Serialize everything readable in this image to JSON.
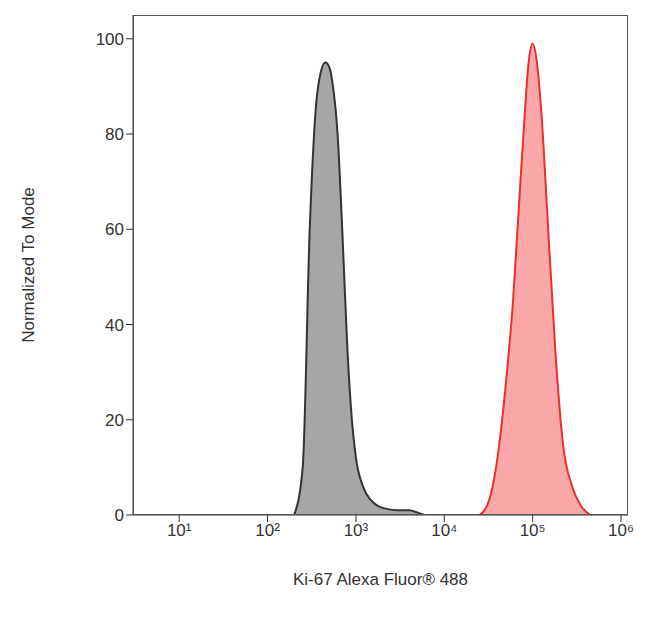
{
  "chart_data": {
    "type": "area",
    "log": "x",
    "xlabel": "Ki-67 Alexa Fluor® 488",
    "ylabel": "Normalized To Mode",
    "xlim": [
      3,
      1200000
    ],
    "xticks": [
      {
        "value": 10,
        "label": "10¹"
      },
      {
        "value": 100,
        "label": "10²"
      },
      {
        "value": 1000,
        "label": "10³"
      },
      {
        "value": 10000,
        "label": "10⁴"
      },
      {
        "value": 100000,
        "label": "10⁵"
      },
      {
        "value": 1000000,
        "label": "10⁶"
      }
    ],
    "ylim": [
      0,
      105
    ],
    "yticks": [
      0,
      20,
      40,
      60,
      80,
      100
    ],
    "grid": false,
    "series": [
      {
        "color": "#a6a6a6",
        "x": [
          200,
          250,
          300,
          350,
          400,
          450,
          500,
          550,
          620,
          700,
          800,
          900,
          1000,
          1200,
          1500,
          2000,
          3000,
          4000,
          5000,
          6000
        ],
        "values": [
          0,
          10,
          60,
          85,
          93,
          95,
          94,
          90,
          80,
          60,
          35,
          20,
          12,
          6,
          3,
          1.5,
          1,
          1,
          0.5,
          0
        ]
      },
      {
        "color": "#f9a7a7",
        "x": [
          25000,
          32000,
          40000,
          50000,
          60000,
          70000,
          80000,
          90000,
          100000,
          110000,
          125000,
          150000,
          180000,
          220000,
          280000,
          350000,
          450000
        ],
        "values": [
          0,
          3,
          12,
          28,
          45,
          65,
          82,
          95,
          99,
          96,
          85,
          60,
          35,
          15,
          6,
          2,
          0
        ]
      }
    ]
  }
}
